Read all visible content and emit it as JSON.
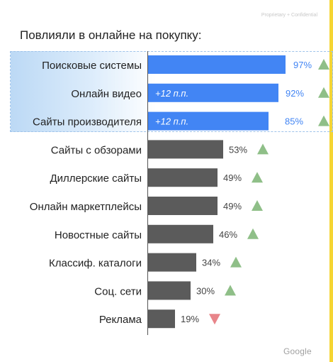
{
  "header": {
    "confidential": "Proprietary + Confidential",
    "brand": "Google"
  },
  "chart_data": {
    "type": "bar",
    "orientation": "horizontal",
    "title": "Повлияли в онлайне на покупку:",
    "xlim": [
      0,
      100
    ],
    "categories": [
      "Поисковые системы",
      "Онлайн видео",
      "Сайты производителя",
      "Сайты с обзорами",
      "Диллерские сайты",
      "Онлайн маркетплейсы",
      "Новостные сайты",
      "Классиф. каталоги",
      "Соц. сети",
      "Реклама"
    ],
    "values": [
      97,
      92,
      85,
      53,
      49,
      49,
      46,
      34,
      30,
      19
    ],
    "value_labels": [
      "97%",
      "92%",
      "85%",
      "53%",
      "49%",
      "49%",
      "46%",
      "34%",
      "30%",
      "19%"
    ],
    "bar_annotations": [
      "",
      "+12 п.п.",
      "+12 п.п.",
      "",
      "",
      "",
      "",
      "",
      "",
      ""
    ],
    "trend": [
      "up",
      "up",
      "up",
      "up",
      "up",
      "up",
      "up",
      "up",
      "up",
      "down"
    ],
    "highlighted": [
      true,
      true,
      true,
      false,
      false,
      false,
      false,
      false,
      false,
      false
    ],
    "colors": {
      "highlight_bar": "#4285f4",
      "highlight_label": "#4285f4",
      "normal_bar": "#5b5b5b",
      "normal_label": "#444444",
      "trend_up": "#8fbf88",
      "trend_down": "#e8858a"
    }
  }
}
